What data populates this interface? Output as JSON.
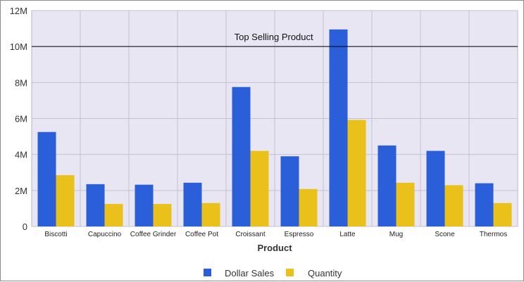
{
  "chart_data": {
    "type": "bar",
    "xlabel": "Product",
    "ylabel": "",
    "categories": [
      "Biscotti",
      "Capuccino",
      "Coffee Grinder",
      "Coffee Pot",
      "Croissant",
      "Espresso",
      "Latte",
      "Mug",
      "Scone",
      "Thermos"
    ],
    "series": [
      {
        "name": "Dollar Sales",
        "color": "#2b5fd9",
        "values": [
          5250000,
          2350000,
          2320000,
          2430000,
          7750000,
          3900000,
          10950000,
          4500000,
          4200000,
          2400000
        ]
      },
      {
        "name": "Quantity",
        "color": "#eac11a",
        "values": [
          2850000,
          1250000,
          1250000,
          1300000,
          4200000,
          2080000,
          5920000,
          2430000,
          2290000,
          1300000
        ]
      }
    ],
    "ylim": [
      0,
      12000000
    ],
    "yticks": [
      0,
      2000000,
      4000000,
      6000000,
      8000000,
      10000000,
      12000000
    ],
    "ytick_labels": [
      "0",
      "2M",
      "4M",
      "6M",
      "8M",
      "10M",
      "12M"
    ],
    "reference_line": {
      "value": 10000000,
      "label": "Top Selling Product"
    },
    "grid": true,
    "plot_background": "#e8e6f2",
    "legend_position": "bottom"
  }
}
